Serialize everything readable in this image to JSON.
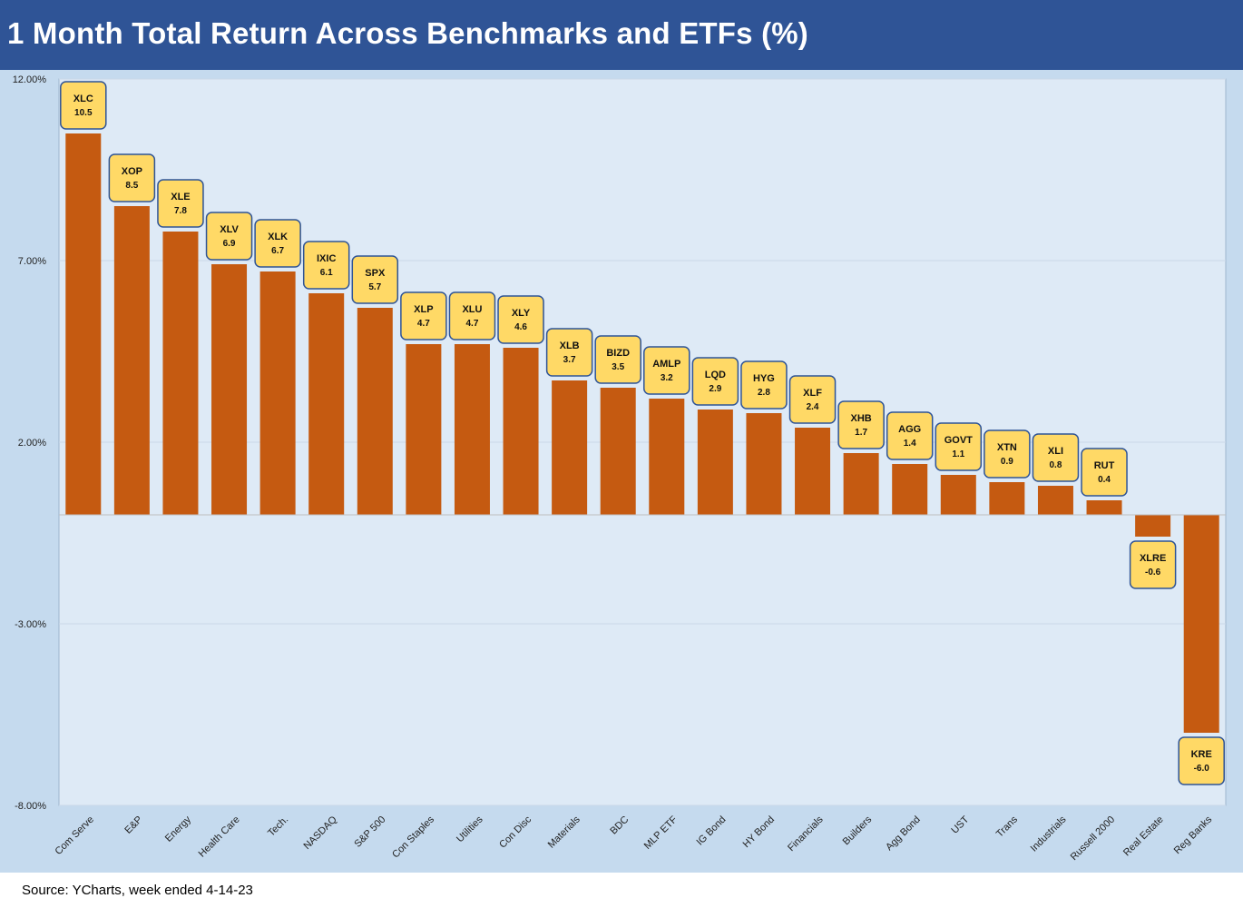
{
  "title": "1 Month Total Return Across Benchmarks and ETFs (%)",
  "source": "Source: YCharts, week ended 4-14-23",
  "colors": {
    "header": "#2f5496",
    "outer": "#c5daee",
    "plot": "#deeaf6",
    "bar": "#c55a11",
    "label_fill": "#ffd966",
    "label_border": "#2f5496"
  },
  "chart_data": {
    "type": "bar",
    "title": "1 Month Total Return Across Benchmarks and ETFs (%)",
    "categories": [
      "Com Serve",
      "E&P",
      "Energy",
      "Health Care",
      "Tech.",
      "NASDAQ",
      "S&P 500",
      "Con Staples",
      "Utilities",
      "Con Disc",
      "Materials",
      "BDC",
      "MLP ETF",
      "IG Bond",
      "HY Bond",
      "Financials",
      "Builders",
      "Agg Bond",
      "UST",
      "Trans",
      "Industrials",
      "Russell 2000",
      "Real Estate",
      "Reg Banks"
    ],
    "tickers": [
      "XLC",
      "XOP",
      "XLE",
      "XLV",
      "XLK",
      "IXIC",
      "SPX",
      "XLP",
      "XLU",
      "XLY",
      "XLB",
      "BIZD",
      "AMLP",
      "LQD",
      "HYG",
      "XLF",
      "XHB",
      "AGG",
      "GOVT",
      "XTN",
      "XLI",
      "RUT",
      "XLRE",
      "KRE"
    ],
    "values": [
      10.5,
      8.5,
      7.8,
      6.9,
      6.7,
      6.1,
      5.7,
      4.7,
      4.7,
      4.6,
      3.7,
      3.5,
      3.2,
      2.9,
      2.8,
      2.4,
      1.7,
      1.4,
      1.1,
      0.9,
      0.8,
      0.4,
      -0.6,
      -6.0
    ],
    "value_labels": [
      "10.5",
      "8.5",
      "7.8",
      "6.9",
      "6.7",
      "6.1",
      "5.7",
      "4.7",
      "4.7",
      "4.6",
      "3.7",
      "3.5",
      "3.2",
      "2.9",
      "2.8",
      "2.4",
      "1.7",
      "1.4",
      "1.1",
      "0.9",
      "0.8",
      "0.4",
      "-0.6",
      "-6.0"
    ],
    "ylim": [
      -8,
      12
    ],
    "yticks": [
      12,
      7,
      2,
      -3,
      -8
    ],
    "ytick_labels": [
      "12.00%",
      "7.00%",
      "2.00%",
      "-3.00%",
      "-8.00%"
    ],
    "grid": true,
    "xlabel": "",
    "ylabel": ""
  }
}
